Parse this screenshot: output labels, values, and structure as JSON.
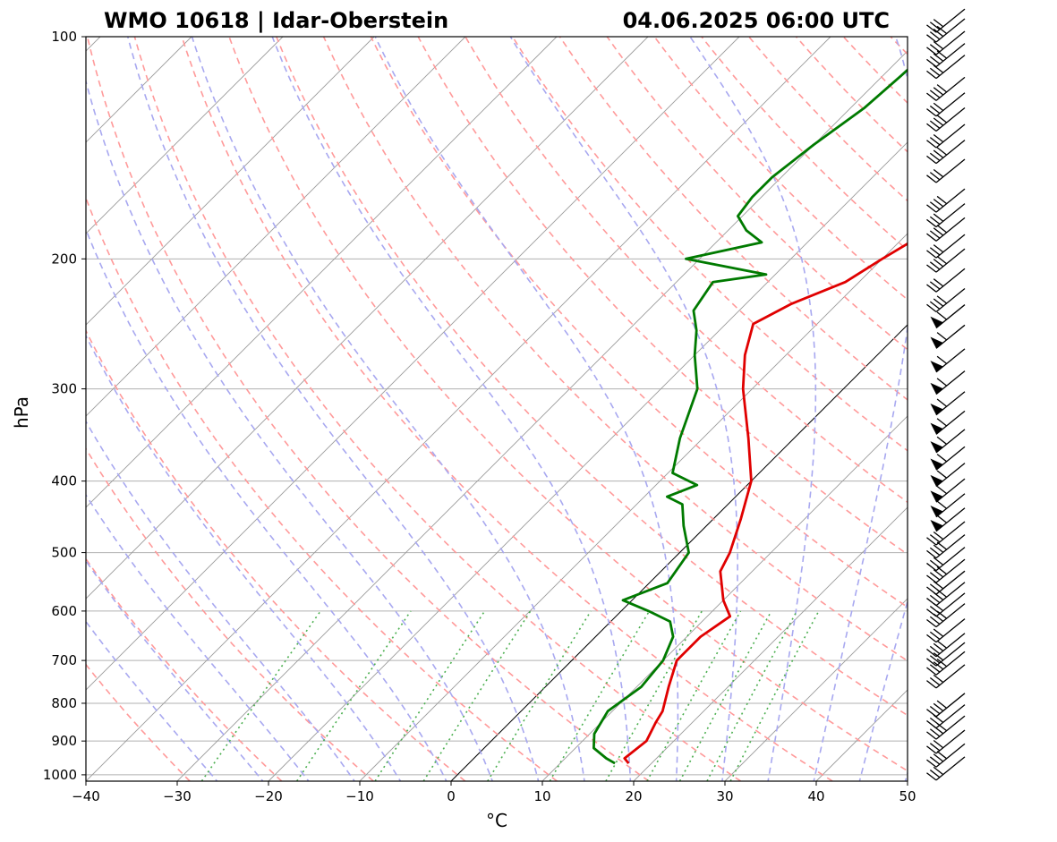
{
  "header": {
    "title_left": "WMO 10618 | Idar-Oberstein",
    "title_right": "04.06.2025 06:00 UTC"
  },
  "chart_data": {
    "type": "line",
    "chart_kind": "skew-T log-P diagram",
    "xlabel": "°C",
    "ylabel": "hPa",
    "xlim": [
      -40,
      50
    ],
    "ylim": [
      1020,
      100
    ],
    "y_scale": "log",
    "x_ticks": [
      -40,
      -30,
      -20,
      -10,
      0,
      10,
      20,
      30,
      40,
      50
    ],
    "y_ticks": [
      100,
      200,
      300,
      400,
      500,
      600,
      700,
      800,
      900,
      1000
    ],
    "grid": "horizontal lines at pressure ticks",
    "background_lines": {
      "isotherms": "thin gray skewed lines",
      "dry_adiabats": "dashed light red",
      "moist_adiabats": "dashed light blue",
      "mixing_ratio": "dotted green",
      "zero_isotherm": "solid black"
    },
    "series": [
      {
        "role": "temperature",
        "color": "#e00000",
        "points": [
          [
            17.5,
            965
          ],
          [
            16.5,
            950
          ],
          [
            17.0,
            900
          ],
          [
            16.0,
            850
          ],
          [
            15.5,
            820
          ],
          [
            13.5,
            760
          ],
          [
            11.5,
            700
          ],
          [
            11.5,
            650
          ],
          [
            12.5,
            610
          ],
          [
            10.0,
            580
          ],
          [
            6.5,
            530
          ],
          [
            5.5,
            500
          ],
          [
            3.0,
            450
          ],
          [
            0.0,
            400
          ],
          [
            -5.0,
            350
          ],
          [
            -11.0,
            300
          ],
          [
            -14.5,
            270
          ],
          [
            -17.0,
            245
          ],
          [
            -15.0,
            230
          ],
          [
            -11.5,
            215
          ],
          [
            -10.0,
            200
          ],
          [
            -7.5,
            180
          ],
          [
            -5.0,
            165
          ],
          [
            -2.0,
            150
          ],
          [
            2.0,
            135
          ],
          [
            6.0,
            122
          ],
          [
            9.0,
            112
          ],
          [
            12.0,
            105
          ],
          [
            13.5,
            100
          ]
        ]
      },
      {
        "role": "dewpoint",
        "color": "#007a00",
        "points": [
          [
            16.0,
            965
          ],
          [
            14.5,
            950
          ],
          [
            12.0,
            920
          ],
          [
            10.5,
            880
          ],
          [
            9.5,
            820
          ],
          [
            10.5,
            760
          ],
          [
            10.0,
            700
          ],
          [
            8.5,
            650
          ],
          [
            6.5,
            620
          ],
          [
            3.0,
            600
          ],
          [
            -1.0,
            580
          ],
          [
            2.0,
            550
          ],
          [
            1.0,
            500
          ],
          [
            -2.5,
            460
          ],
          [
            -5.0,
            430
          ],
          [
            -7.5,
            420
          ],
          [
            -5.5,
            405
          ],
          [
            -9.5,
            390
          ],
          [
            -12.5,
            350
          ],
          [
            -16.0,
            300
          ],
          [
            -20.0,
            270
          ],
          [
            -22.5,
            250
          ],
          [
            -25.0,
            235
          ],
          [
            -26.0,
            215
          ],
          [
            -21.0,
            210
          ],
          [
            -31.5,
            200
          ],
          [
            -25.0,
            190
          ],
          [
            -28.0,
            183
          ],
          [
            -30.5,
            175
          ],
          [
            -31.0,
            165
          ],
          [
            -31.0,
            155
          ],
          [
            -30.0,
            140
          ],
          [
            -28.5,
            125
          ],
          [
            -28.0,
            113
          ],
          [
            -27.5,
            100
          ]
        ]
      }
    ],
    "wind_barbs": {
      "position": "right column",
      "levels_hPa": [
        97,
        100,
        104,
        108,
        112,
        120,
        126,
        132,
        139,
        146,
        155,
        170,
        178,
        186,
        196,
        205,
        218,
        232,
        244,
        260,
        280,
        300,
        320,
        340,
        360,
        380,
        400,
        420,
        440,
        460,
        480,
        500,
        520,
        540,
        560,
        580,
        600,
        620,
        650,
        680,
        700,
        720,
        750,
        820,
        850,
        880,
        920,
        960,
        1000
      ]
    }
  }
}
